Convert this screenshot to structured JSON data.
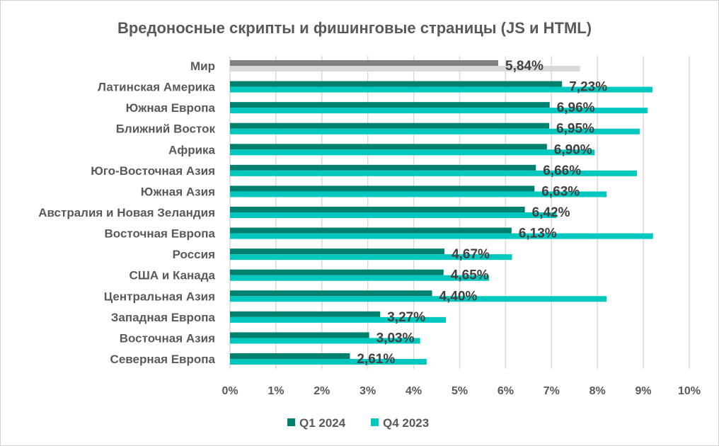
{
  "chart_data": {
    "type": "bar",
    "orientation": "horizontal",
    "title": "Вредоносные скрипты и фишинговые страницы (JS и HTML)",
    "categories": [
      "Мир",
      "Латинская Америка",
      "Южная Европа",
      "Ближний Восток",
      "Африка",
      "Юго-Восточная Азия",
      "Южная Азия",
      "Австралия и Новая Зеландия",
      "Восточная Европа",
      "Россия",
      "США и Канада",
      "Центральная Азия",
      "Западная Европа",
      "Восточная Азия",
      "Северная Европа"
    ],
    "series": [
      {
        "name": "Q1 2024",
        "color": "#00806e",
        "highlight_color": "#808080",
        "values": [
          5.84,
          7.23,
          6.96,
          6.95,
          6.9,
          6.66,
          6.63,
          6.42,
          6.13,
          4.67,
          4.65,
          4.4,
          3.27,
          3.03,
          2.61
        ],
        "labels": [
          "5,84%",
          "7,23%",
          "6,96%",
          "6,95%",
          "6,90%",
          "6,66%",
          "6,63%",
          "6,42%",
          "6,13%",
          "4,67%",
          "4,65%",
          "4,40%",
          "3,27%",
          "3,03%",
          "2,61%"
        ]
      },
      {
        "name": "Q4 2023",
        "color": "#00c8be",
        "highlight_color": "#d9d9d9",
        "values": [
          7.62,
          9.2,
          9.09,
          8.92,
          7.94,
          8.86,
          8.2,
          7.11,
          9.21,
          6.14,
          5.64,
          8.2,
          4.7,
          4.14,
          4.28
        ]
      }
    ],
    "xlim": [
      0,
      10
    ],
    "xticks": [
      "0%",
      "1%",
      "2%",
      "3%",
      "4%",
      "5%",
      "6%",
      "7%",
      "8%",
      "9%",
      "10%"
    ],
    "grid": true,
    "legend": "bottom",
    "xlabel": "",
    "ylabel": ""
  }
}
